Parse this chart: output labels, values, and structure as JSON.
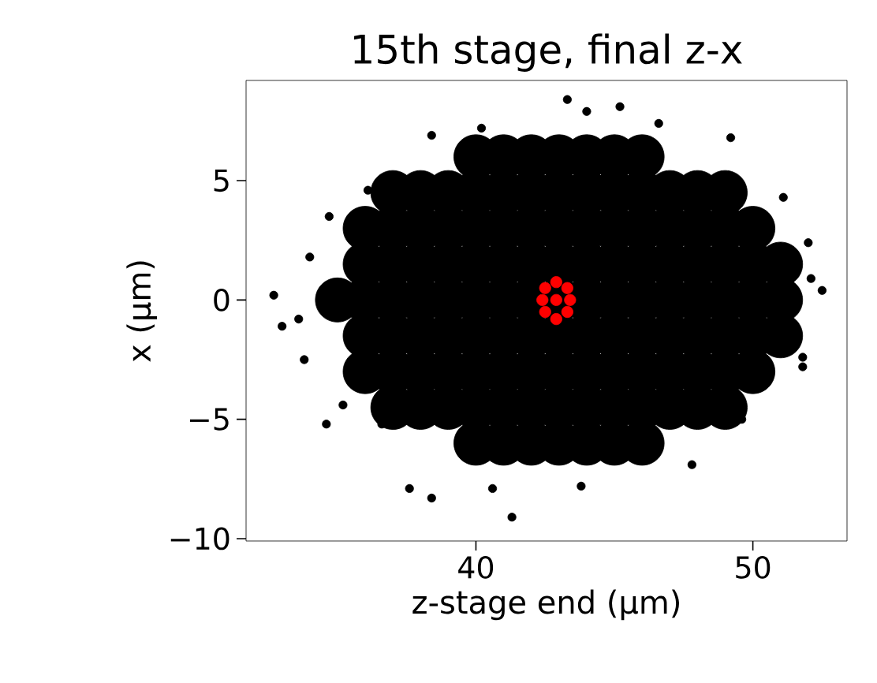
{
  "chart_data": {
    "type": "scatter",
    "title": "15th stage, final z-x",
    "xlabel": "z-stage end (μm)",
    "ylabel": "x (μm)",
    "xlim": [
      31.7,
      53.4
    ],
    "ylim": [
      -10.1,
      9.2
    ],
    "xticks": [
      40,
      50
    ],
    "yticks": [
      {
        "value": -10,
        "label": "−10"
      },
      {
        "value": -5,
        "label": "−5"
      },
      0,
      5
    ],
    "marker": "circle",
    "series": [
      {
        "color": "#000000",
        "x": [
          40,
          41,
          42,
          43,
          44,
          45,
          46,
          37,
          38,
          39,
          40,
          41,
          42,
          43,
          44,
          45,
          46,
          47,
          48,
          49,
          36,
          37,
          38,
          39,
          40,
          41,
          42,
          43,
          44,
          45,
          46,
          47,
          48,
          49,
          50,
          36,
          37,
          38,
          39,
          40,
          41,
          42,
          43,
          44,
          45,
          46,
          47,
          48,
          49,
          50,
          51,
          35,
          36,
          37,
          38,
          39,
          40,
          41,
          42,
          43,
          44,
          45,
          46,
          47,
          48,
          49,
          50,
          51,
          36,
          37,
          38,
          39,
          40,
          41,
          42,
          43,
          44,
          45,
          46,
          47,
          48,
          49,
          50,
          51,
          36,
          37,
          38,
          39,
          40,
          41,
          42,
          43,
          44,
          45,
          46,
          47,
          48,
          49,
          50,
          37,
          38,
          39,
          40,
          41,
          42,
          43,
          44,
          45,
          46,
          47,
          48,
          49,
          40,
          41,
          42,
          43,
          44,
          45,
          46
        ],
        "values": [
          6,
          6,
          6,
          6,
          6,
          6,
          6,
          4.5,
          4.5,
          4.5,
          4.5,
          4.5,
          4.5,
          4.5,
          4.5,
          4.5,
          4.5,
          4.5,
          4.5,
          4.5,
          3,
          3,
          3,
          3,
          3,
          3,
          3,
          3,
          3,
          3,
          3,
          3,
          3,
          3,
          3,
          1.5,
          1.5,
          1.5,
          1.5,
          1.5,
          1.5,
          1.5,
          1.5,
          1.5,
          1.5,
          1.5,
          1.5,
          1.5,
          1.5,
          1.5,
          1.5,
          0,
          0,
          0,
          0,
          0,
          0,
          0,
          0,
          0,
          0,
          0,
          0,
          0,
          0,
          0,
          0,
          0,
          -1.5,
          -1.5,
          -1.5,
          -1.5,
          -1.5,
          -1.5,
          -1.5,
          -1.5,
          -1.5,
          -1.5,
          -1.5,
          -1.5,
          -1.5,
          -1.5,
          -1.5,
          -1.5,
          -3,
          -3,
          -3,
          -3,
          -3,
          -3,
          -3,
          -3,
          -3,
          -3,
          -3,
          -3,
          -3,
          -3,
          -3,
          -4.5,
          -4.5,
          -4.5,
          -4.5,
          -4.5,
          -4.5,
          -4.5,
          -4.5,
          -4.5,
          -4.5,
          -4.5,
          -4.5,
          -4.5,
          -6,
          -6,
          -6,
          -6,
          -6,
          -6,
          -6
        ]
      },
      {
        "color": "#000000",
        "x": [
          32.7,
          33.0,
          33.6,
          33.8,
          34.0,
          34.7,
          34.6,
          35.2,
          36.1,
          36.6,
          37.6,
          38.4,
          38.4,
          40.2,
          40.6,
          41.3,
          43.3,
          43.8,
          44.0,
          45.2,
          46.6,
          47.8,
          49.2,
          49.6,
          51.1,
          51.8,
          51.8,
          52.0,
          52.1,
          52.5
        ],
        "values": [
          0.2,
          -1.1,
          -0.8,
          -2.5,
          1.8,
          3.5,
          -5.2,
          -4.4,
          4.6,
          -5.2,
          -7.9,
          -8.3,
          6.9,
          7.2,
          -7.9,
          -9.1,
          8.4,
          -7.8,
          7.9,
          8.1,
          7.4,
          -6.9,
          6.8,
          -5.0,
          4.3,
          -2.4,
          -2.8,
          2.4,
          0.9,
          0.4
        ]
      },
      {
        "color": "#ff0000",
        "x": [
          42.5,
          42.9,
          43.3,
          43.4,
          43.3,
          42.9,
          42.5,
          42.4,
          42.9
        ],
        "values": [
          0.5,
          0.75,
          0.5,
          0,
          -0.5,
          -0.8,
          -0.5,
          0,
          0
        ]
      }
    ]
  }
}
